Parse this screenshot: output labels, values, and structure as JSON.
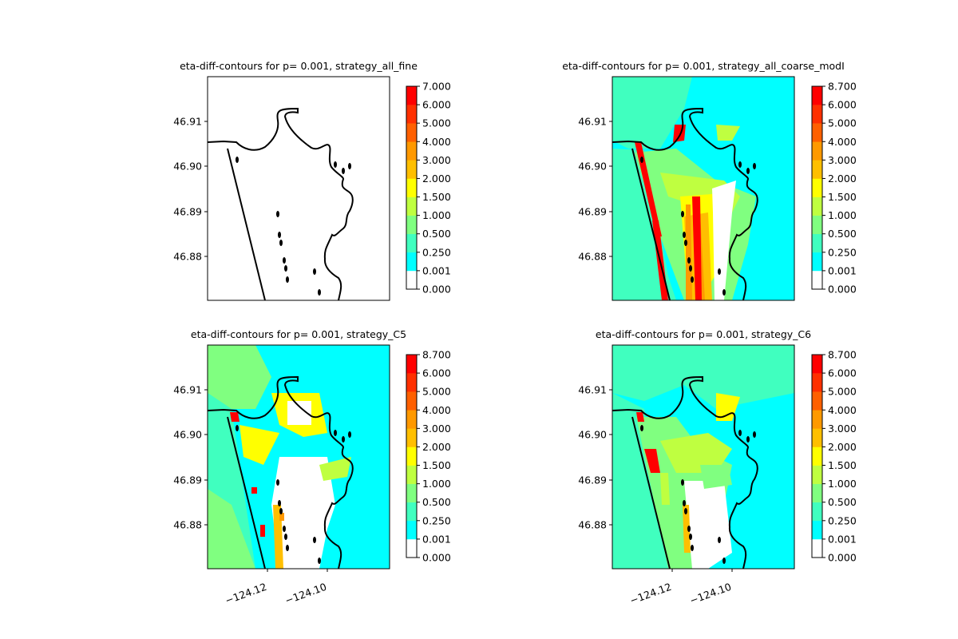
{
  "chart_data": [
    {
      "type": "heatmap",
      "title": "eta-diff-contours for p= 0.001, strategy_all_fine",
      "colorbar": {
        "levels": [
          "0.000",
          "0.001",
          "0.250",
          "0.500",
          "1.000",
          "1.500",
          "2.000",
          "3.000",
          "4.000",
          "5.000",
          "6.000",
          "7.000"
        ],
        "colors": [
          "#ffffff",
          "#00ffff",
          "#40ffbf",
          "#80ff80",
          "#bfff40",
          "#ffff00",
          "#ffbf00",
          "#ff9900",
          "#ff6000",
          "#ff3000",
          "#ff0000"
        ]
      },
      "yticks": [
        "46.91",
        "46.90",
        "46.89",
        "46.88"
      ],
      "xticks": [],
      "field": "white"
    },
    {
      "type": "heatmap",
      "title": "eta-diff-contours for p= 0.001, strategy_all_coarse_modI",
      "colorbar": {
        "levels": [
          "0.000",
          "0.001",
          "0.250",
          "0.500",
          "1.000",
          "1.500",
          "2.000",
          "3.000",
          "4.000",
          "5.000",
          "6.000",
          "8.700"
        ],
        "colors": [
          "#ffffff",
          "#00ffff",
          "#40ffbf",
          "#80ff80",
          "#bfff40",
          "#ffff00",
          "#ffbf00",
          "#ff9900",
          "#ff6000",
          "#ff3000",
          "#ff0000"
        ]
      },
      "yticks": [
        "46.91",
        "46.90",
        "46.89",
        "46.88"
      ],
      "xticks": [],
      "field": "coarse"
    },
    {
      "type": "heatmap",
      "title": "eta-diff-contours for p= 0.001, strategy_C5",
      "colorbar": {
        "levels": [
          "0.000",
          "0.001",
          "0.250",
          "0.500",
          "1.000",
          "1.500",
          "2.000",
          "3.000",
          "4.000",
          "5.000",
          "6.000",
          "8.700"
        ],
        "colors": [
          "#ffffff",
          "#00ffff",
          "#40ffbf",
          "#80ff80",
          "#bfff40",
          "#ffff00",
          "#ffbf00",
          "#ff9900",
          "#ff6000",
          "#ff3000",
          "#ff0000"
        ]
      },
      "yticks": [
        "46.91",
        "46.90",
        "46.89",
        "46.88"
      ],
      "xticks": [
        "−124.12",
        "−124.10"
      ],
      "field": "c5"
    },
    {
      "type": "heatmap",
      "title": "eta-diff-contours for p= 0.001, strategy_C6",
      "colorbar": {
        "levels": [
          "0.000",
          "0.001",
          "0.250",
          "0.500",
          "1.000",
          "1.500",
          "2.000",
          "3.000",
          "4.000",
          "5.000",
          "6.000",
          "8.700"
        ],
        "colors": [
          "#ffffff",
          "#00ffff",
          "#40ffbf",
          "#80ff80",
          "#bfff40",
          "#ffff00",
          "#ffbf00",
          "#ff9900",
          "#ff6000",
          "#ff3000",
          "#ff0000"
        ]
      },
      "yticks": [
        "46.91",
        "46.90",
        "46.89",
        "46.88"
      ],
      "xticks": [
        "−124.12",
        "−124.10"
      ],
      "field": "c6"
    }
  ]
}
